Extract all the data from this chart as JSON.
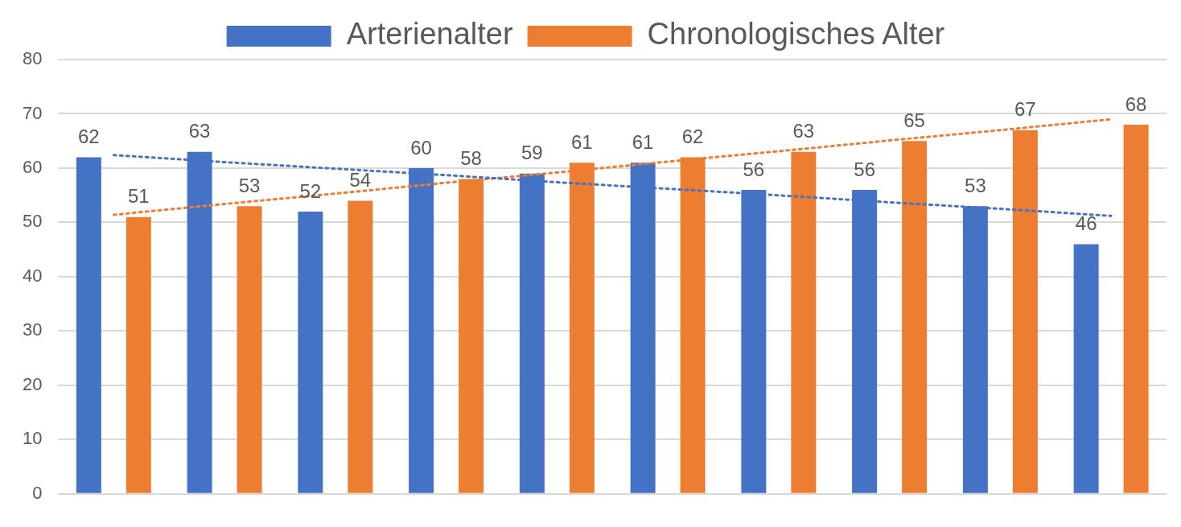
{
  "chart_data": {
    "type": "bar",
    "categories": [
      null,
      null,
      null,
      null,
      null,
      null,
      null,
      null,
      null,
      null
    ],
    "series": [
      {
        "name": "Arterienalter",
        "color": "#4472c4",
        "values": [
          62,
          63,
          52,
          60,
          59,
          61,
          56,
          56,
          53,
          46
        ],
        "value_labels": [
          "62",
          "63",
          "52",
          "60",
          "59",
          "61",
          "56",
          "56",
          "53",
          "46"
        ]
      },
      {
        "name": "Chronologisches Alter",
        "color": "#ed7d31",
        "values": [
          51,
          53,
          54,
          58,
          61,
          62,
          63,
          65,
          67,
          68
        ],
        "value_labels": [
          "51",
          "53",
          "54",
          "58",
          "61",
          "62",
          "63",
          "65",
          "67",
          "68"
        ]
      },
      {
        "type": "line",
        "color": "#4472c4",
        "line_style": "dotted",
        "marker": "none",
        "values": [
          62.4,
          61.1,
          59.9,
          58.7,
          57.4,
          56.2,
          55.0,
          53.7,
          52.5,
          51.2
        ]
      },
      {
        "type": "line",
        "color": "#ed7d31",
        "line_style": "dotted",
        "marker": "none",
        "values": [
          51.4,
          53.4,
          55.3,
          57.3,
          59.2,
          61.2,
          63.1,
          65.1,
          67.0,
          69.0
        ]
      }
    ],
    "ylim": [
      0,
      80
    ],
    "yticks": [
      0,
      10,
      20,
      30,
      40,
      50,
      60,
      70,
      80
    ],
    "grid": "y",
    "legend": "top",
    "tick_labels": "y"
  }
}
